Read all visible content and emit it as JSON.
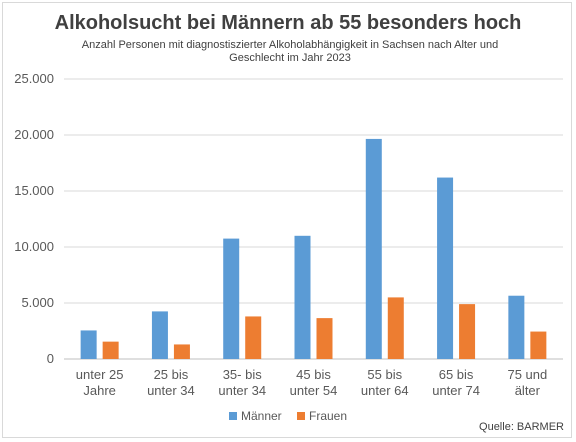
{
  "chart_data": {
    "type": "bar",
    "title": "Alkoholsucht bei Männern ab 55 besonders hoch",
    "subtitle": "Anzahl Personen mit diagnostiszierter Alkoholabhängigkeit in Sachsen nach Alter und Geschlecht im Jahr 2023",
    "categories": [
      [
        "unter 25",
        "Jahre"
      ],
      [
        "25 bis",
        "unter 34"
      ],
      [
        "35- bis",
        "unter 34"
      ],
      [
        "45 bis",
        "unter 54"
      ],
      [
        "55 bis",
        "unter 64"
      ],
      [
        "65 bis",
        "unter 74"
      ],
      [
        "75 und",
        "älter"
      ]
    ],
    "series": [
      {
        "name": "Männer",
        "color": "#5b9bd5",
        "values": [
          2550,
          4250,
          10750,
          11000,
          19650,
          16200,
          5650
        ]
      },
      {
        "name": "Frauen",
        "color": "#ed7d31",
        "values": [
          1550,
          1300,
          3800,
          3650,
          5500,
          4900,
          2450
        ]
      }
    ],
    "ylim": [
      0,
      25000
    ],
    "yticks": [
      0,
      5000,
      10000,
      15000,
      20000,
      25000
    ],
    "ytick_labels": [
      "0",
      "5.000",
      "10.000",
      "15.000",
      "20.000",
      "25.000"
    ],
    "grid": true,
    "legend_position": "bottom"
  },
  "source": "Quelle: BARMER"
}
